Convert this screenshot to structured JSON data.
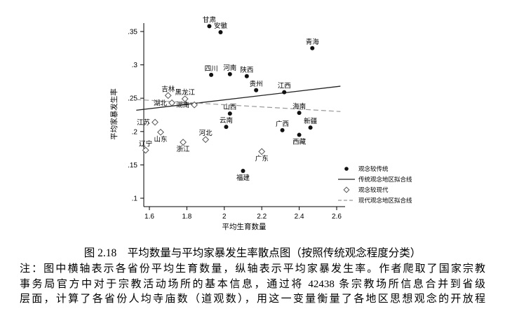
{
  "page": {
    "caption": "图 2.18　平均数量与平均家暴发生率散点图（按照传统观念程度分类）",
    "notes": [
      "注：图中横轴表示各省份平均生育数量，纵轴表示平均家暴发生率。作者爬取了国家宗教",
      "事务局官方中对于宗教活动场所的基本信息，通过将 42438 条宗教场所信息合并到省级",
      "层面，计算了各省份人均寺庙数（道观数），用这一变量衡量了各地区思想观念的开放程"
    ]
  },
  "colors": {
    "marker_traditional": "#111111",
    "marker_modern_stroke": "#555555",
    "line_traditional": "#222222",
    "line_modern": "#999999",
    "axis": "#000000",
    "text": "#000000"
  },
  "chart_data": {
    "type": "scatter",
    "xlabel": "平均生育数量",
    "ylabel": "平均家暴发生率",
    "xlim": [
      1.5,
      2.7
    ],
    "ylim": [
      0.1,
      0.37
    ],
    "grid": false,
    "legend_position": "bottom-right",
    "xticks": [
      {
        "v": 1.6,
        "label": "1.6"
      },
      {
        "v": 1.8,
        "label": "1.8"
      },
      {
        "v": 2.0,
        "label": "2"
      },
      {
        "v": 2.2,
        "label": "2.2"
      },
      {
        "v": 2.4,
        "label": "2.4"
      },
      {
        "v": 2.6,
        "label": "2.6"
      }
    ],
    "yticks": [
      {
        "v": 0.1,
        "label": ".1"
      },
      {
        "v": 0.15,
        "label": ".15"
      },
      {
        "v": 0.2,
        "label": ".2"
      },
      {
        "v": 0.25,
        "label": ".25"
      },
      {
        "v": 0.3,
        "label": ".3"
      },
      {
        "v": 0.35,
        "label": ".35"
      }
    ],
    "series": [
      {
        "name": "观念较传统",
        "marker": "filled-circle",
        "points": [
          {
            "label": "甘肃",
            "x": 1.92,
            "y": 0.358,
            "label_pos": "above"
          },
          {
            "label": "安徽",
            "x": 1.98,
            "y": 0.349,
            "label_pos": "above"
          },
          {
            "label": "青海",
            "x": 2.47,
            "y": 0.325,
            "label_pos": "above"
          },
          {
            "label": "四川",
            "x": 1.93,
            "y": 0.285,
            "label_pos": "above"
          },
          {
            "label": "河南",
            "x": 2.03,
            "y": 0.286,
            "label_pos": "above"
          },
          {
            "label": "陕西",
            "x": 2.12,
            "y": 0.283,
            "label_pos": "above"
          },
          {
            "label": "贵州",
            "x": 2.17,
            "y": 0.262,
            "label_pos": "above"
          },
          {
            "label": "江西",
            "x": 2.32,
            "y": 0.259,
            "label_pos": "above"
          },
          {
            "label": "山西",
            "x": 2.03,
            "y": 0.227,
            "label_pos": "above"
          },
          {
            "label": "云南",
            "x": 2.01,
            "y": 0.207,
            "label_pos": "above"
          },
          {
            "label": "广西",
            "x": 2.31,
            "y": 0.202,
            "label_pos": "above"
          },
          {
            "label": "海南",
            "x": 2.4,
            "y": 0.228,
            "label_pos": "above"
          },
          {
            "label": "新疆",
            "x": 2.46,
            "y": 0.206,
            "label_pos": "above"
          },
          {
            "label": "西藏",
            "x": 2.4,
            "y": 0.195,
            "label_pos": "below"
          },
          {
            "label": "福建",
            "x": 2.1,
            "y": 0.141,
            "label_pos": "below"
          }
        ]
      },
      {
        "name": "观念较现代",
        "marker": "hollow-diamond",
        "points": [
          {
            "label": "吉林",
            "x": 1.7,
            "y": 0.254,
            "label_pos": "above"
          },
          {
            "label": "湖北",
            "x": 1.72,
            "y": 0.243,
            "label_pos": "left"
          },
          {
            "label": "黑龙江",
            "x": 1.79,
            "y": 0.249,
            "label_pos": "above"
          },
          {
            "label": "湖南",
            "x": 1.84,
            "y": 0.24,
            "label_pos": "left"
          },
          {
            "label": "江苏",
            "x": 1.63,
            "y": 0.214,
            "label_pos": "left"
          },
          {
            "label": "山东",
            "x": 1.66,
            "y": 0.199,
            "label_pos": "below"
          },
          {
            "label": "河北",
            "x": 1.9,
            "y": 0.188,
            "label_pos": "above"
          },
          {
            "label": "辽宁",
            "x": 1.58,
            "y": 0.172,
            "label_pos": "above"
          },
          {
            "label": "浙江",
            "x": 1.78,
            "y": 0.184,
            "label_pos": "below"
          },
          {
            "label": "广东",
            "x": 2.2,
            "y": 0.17,
            "label_pos": "below"
          }
        ]
      }
    ],
    "fit_lines": [
      {
        "name": "传统观念地区拟合线",
        "style": "solid",
        "from": [
          1.53,
          0.232
        ],
        "to": [
          2.62,
          0.268
        ]
      },
      {
        "name": "现代观念地区拟合线",
        "style": "dashed",
        "from": [
          1.53,
          0.248
        ],
        "to": [
          2.62,
          0.23
        ]
      }
    ],
    "legend": [
      {
        "marker": "filled-circle",
        "label": "观念较传统"
      },
      {
        "marker": "solid-line",
        "label": "传统观念地区拟合线"
      },
      {
        "marker": "hollow-diamond",
        "label": "观念较现代"
      },
      {
        "marker": "dashed-line",
        "label": "现代观念地区拟合线"
      }
    ]
  }
}
